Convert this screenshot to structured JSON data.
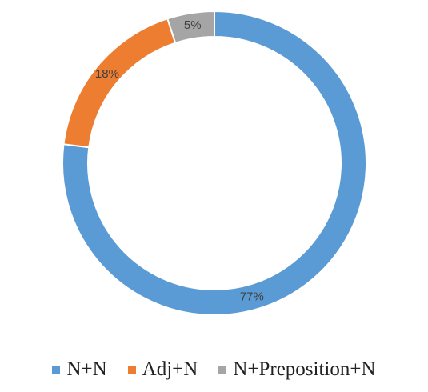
{
  "chart_data": {
    "type": "donut",
    "categories": [
      "N+N",
      "Adj+N",
      "N+Preposition+N"
    ],
    "values": [
      77,
      18,
      5
    ],
    "value_labels": [
      "77%",
      "18%",
      "5%"
    ],
    "colors": [
      "#5b9bd5",
      "#ed7d31",
      "#a5a5a5"
    ],
    "legend": "bottom"
  }
}
